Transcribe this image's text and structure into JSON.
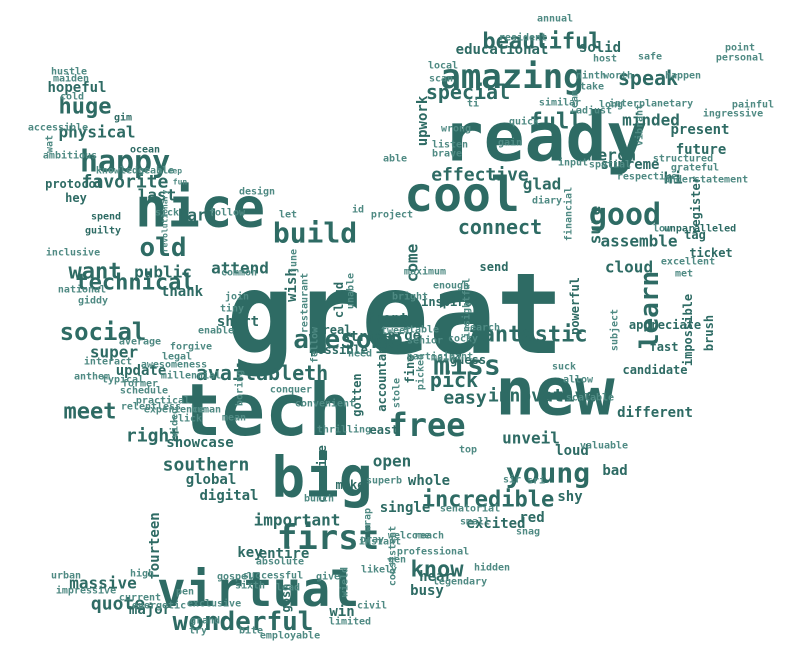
{
  "colors": {
    "primary": "#2e6b64",
    "medium": "#4f8a83",
    "light": "#7aa6a0",
    "background": "#ffffff"
  },
  "words": [
    "great",
    "tech",
    "new",
    "ready",
    "big",
    "nice",
    "virtual",
    "cool",
    "first",
    "free",
    "amazing",
    "happy",
    "good",
    "build",
    "young",
    "awesome",
    "miss",
    "wonderful",
    "learn",
    "beautiful",
    "technical",
    "want",
    "social",
    "fantastic",
    "old",
    "connect",
    "availableth",
    "incredible",
    "speak",
    "meet",
    "southern",
    "special",
    "huge",
    "full",
    "effective",
    "favorite",
    "easy",
    "innovative",
    "pick",
    "right",
    "know",
    "quote",
    "public",
    "super",
    "merch",
    "minded",
    "glad",
    "hi",
    "assemble",
    "cloud",
    "sure",
    "physical",
    "last",
    "hard",
    "attend",
    "wish",
    "short",
    "thank",
    "update",
    "open",
    "unveil",
    "loud",
    "whole",
    "excited",
    "shy",
    "bad",
    "different",
    "global",
    "digital",
    "important",
    "showcase",
    "key",
    "entire",
    "massive",
    "fourteen",
    "major",
    "win",
    "busy",
    "hear",
    "red",
    "educational",
    "solid",
    "future",
    "present",
    "tag",
    "ticket",
    "register",
    "appreciate",
    "supreme",
    "come",
    "front",
    "large",
    "fine",
    "send",
    "guess",
    "cloud",
    "real",
    "gotten",
    "accountable",
    "possible",
    "strive",
    "creative",
    "east",
    "single",
    "unparalleled",
    "powerful",
    "impossible",
    "brush",
    "fast",
    "candidate",
    "hopeful",
    "gim",
    "ocean",
    "sleep",
    "fun",
    "protocol",
    "hey",
    "spend",
    "guilty",
    "revolutionary",
    "inspired",
    "insightful",
    "search",
    "bright",
    "maximum",
    "local",
    "host",
    "safe",
    "point",
    "personal",
    "painful",
    "vibrant",
    "interplanetary",
    "happen",
    "worth",
    "take",
    "ninth",
    "annual",
    "similar",
    "resident",
    "scan",
    "upwork",
    "listen",
    "brave",
    "quick",
    "wrong",
    "gain",
    "input",
    "spatial",
    "respective",
    "structured",
    "grateful",
    "diary",
    "financial",
    "team",
    "able",
    "project",
    "id",
    "design",
    "follow",
    "let",
    "june",
    "common",
    "join",
    "tiny",
    "enable",
    "forgive",
    "average",
    "legal",
    "interact",
    "awesomeness",
    "anthem",
    "typical",
    "former",
    "practical",
    "experience",
    "video",
    "click",
    "mean",
    "human",
    "boring",
    "conquer",
    "picked",
    "thrilling",
    "make",
    "superb",
    "instant",
    "bunch",
    "wrap",
    "pray",
    "welcome",
    "reach",
    "senatorial",
    "small",
    "snag",
    "sir",
    "sri",
    "valuable",
    "scalable",
    "allow",
    "suck",
    "cocky",
    "stable",
    "senior",
    "tweet",
    "need",
    "fellow",
    "restaurant",
    "unable",
    "likely",
    "give",
    "gospel",
    "successful",
    "absolute",
    "sixth",
    "exclusive",
    "pen",
    "grand",
    "high",
    "current",
    "energetic",
    "impressive",
    "urban",
    "try",
    "bite",
    "employable",
    "limited",
    "gosh",
    "lead",
    "wield",
    "consistent",
    "legendary",
    "hidden",
    "gen",
    "professional",
    "participant",
    "enough",
    "main",
    "top",
    "stole",
    "convenient",
    "low",
    "met",
    "excellent",
    "subject",
    "adjust",
    "ti",
    "long",
    "hustle",
    "maiden",
    "cold",
    "accessible",
    "wat",
    "ambitious",
    "knowledgeable",
    "sick",
    "national",
    "inclusive",
    "giddy",
    "millennial",
    "schedule",
    "relentless",
    "understatement",
    "ingressive",
    "civil",
    "monthly",
    "engage",
    "overall",
    "hello",
    "built"
  ]
}
